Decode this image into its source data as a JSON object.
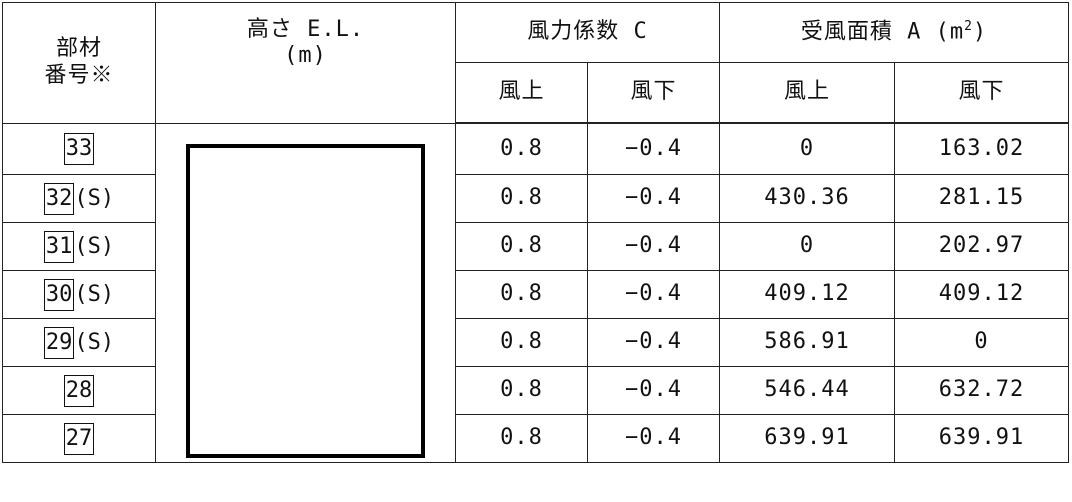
{
  "headers": {
    "member_no_line1": "部材",
    "member_no_line2": "番号※",
    "elevation_line1": "高さ E.L.",
    "elevation_line2": "(m)",
    "coef": "風力係数 C",
    "area_prefix": "受風面積 A (m",
    "area_sup": "2",
    "area_suffix": ")",
    "coef_upwind": "風上",
    "coef_downwind": "風下",
    "area_upwind": "風上",
    "area_downwind": "風下"
  },
  "rows": [
    {
      "member": "33",
      "suffix": "",
      "c_up": "0.8",
      "c_down": "−0.4",
      "a_up": "0",
      "a_down": "163.02"
    },
    {
      "member": "32",
      "suffix": "(S)",
      "c_up": "0.8",
      "c_down": "−0.4",
      "a_up": "430.36",
      "a_down": "281.15"
    },
    {
      "member": "31",
      "suffix": "(S)",
      "c_up": "0.8",
      "c_down": "−0.4",
      "a_up": "0",
      "a_down": "202.97"
    },
    {
      "member": "30",
      "suffix": "(S)",
      "c_up": "0.8",
      "c_down": "−0.4",
      "a_up": "409.12",
      "a_down": "409.12"
    },
    {
      "member": "29",
      "suffix": "(S)",
      "c_up": "0.8",
      "c_down": "−0.4",
      "a_up": "586.91",
      "a_down": "0"
    },
    {
      "member": "28",
      "suffix": "",
      "c_up": "0.8",
      "c_down": "−0.4",
      "a_up": "546.44",
      "a_down": "632.72"
    },
    {
      "member": "27",
      "suffix": "",
      "c_up": "0.8",
      "c_down": "−0.4",
      "a_up": "639.91",
      "a_down": "639.91"
    }
  ]
}
